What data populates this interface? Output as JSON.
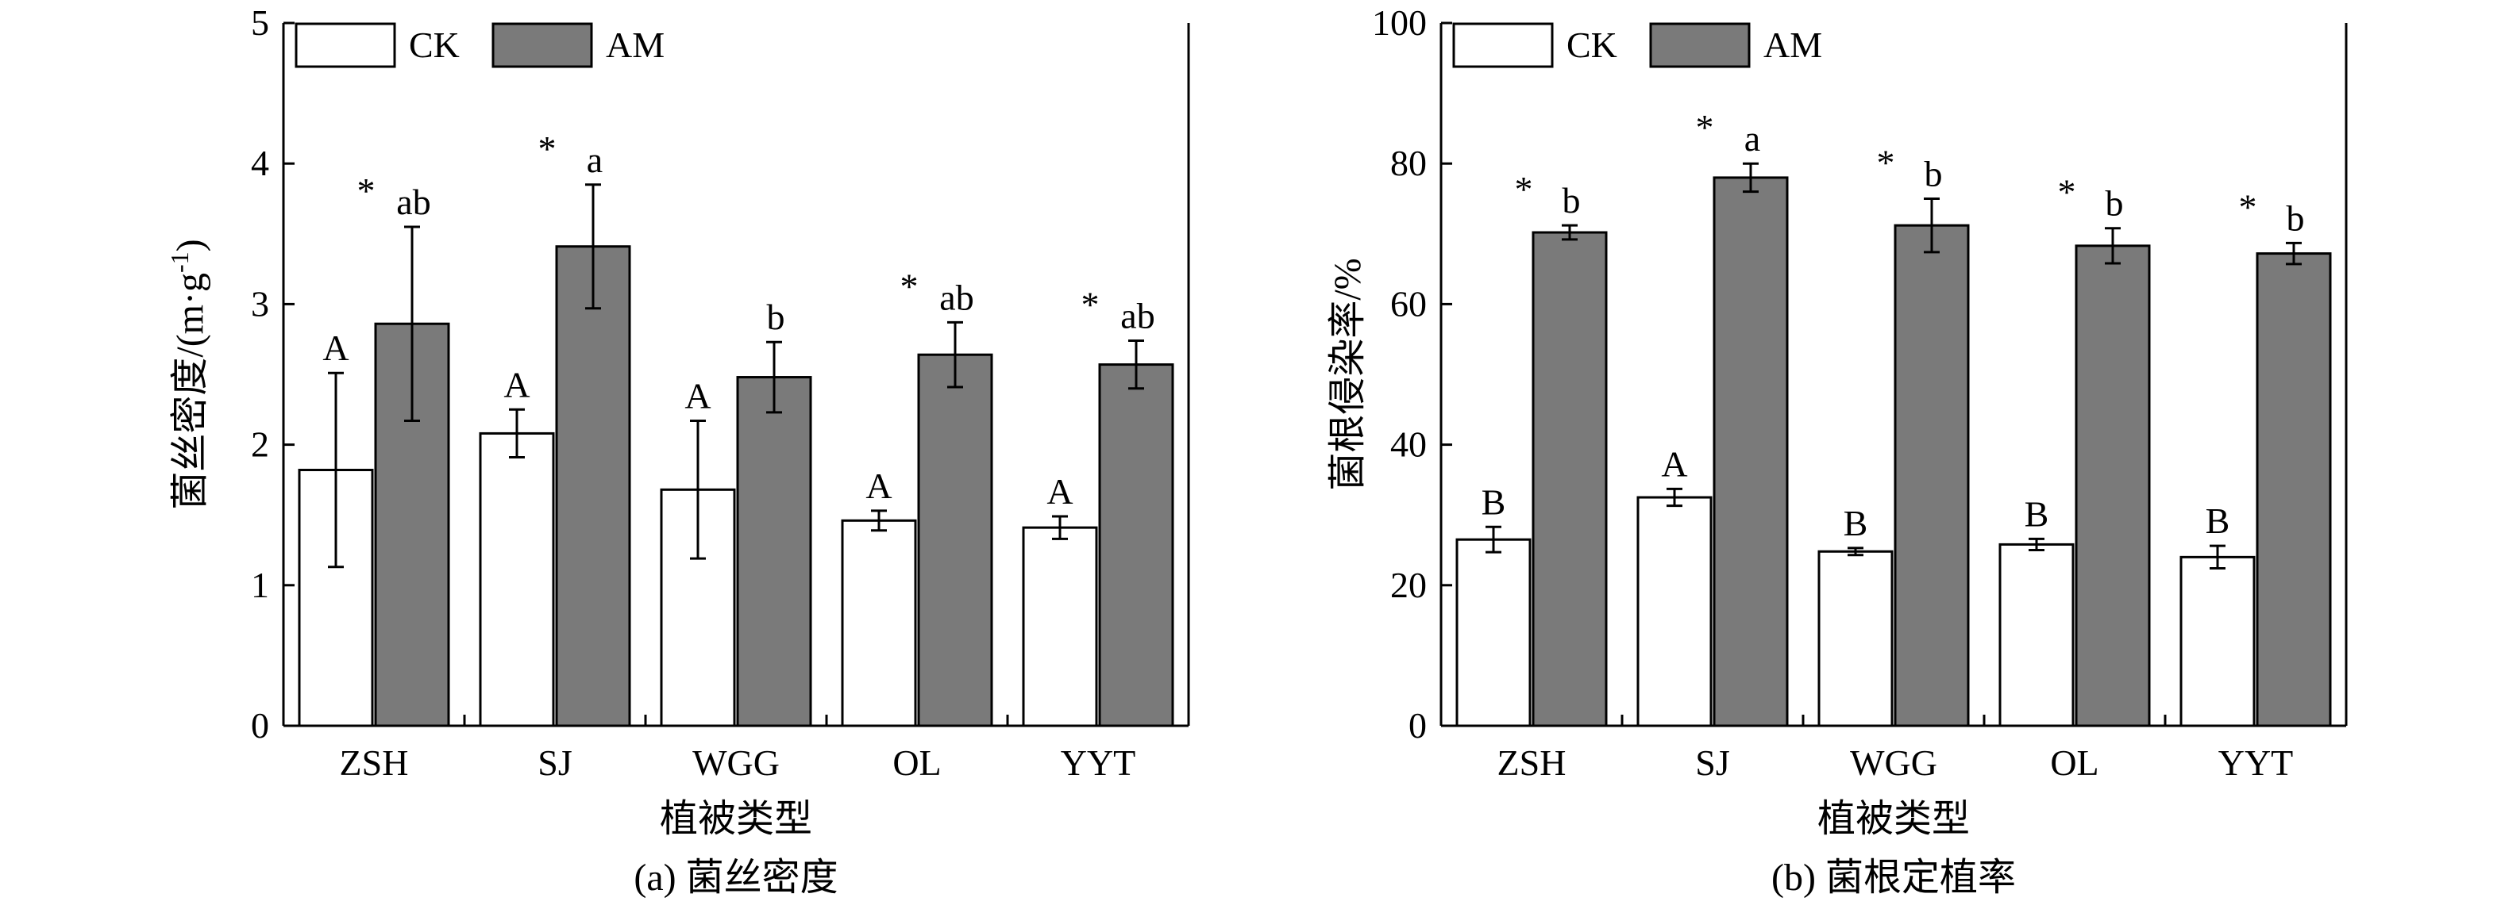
{
  "colors": {
    "CK": "#ffffff",
    "AM": "#7a7a7a",
    "stroke": "#000000"
  },
  "chart_data": [
    {
      "type": "bar",
      "caption": "(a) 菌丝密度",
      "xlabel": "植被类型",
      "ylabel": "菌丝密度/(m·g",
      "ylabel_sup": "-1",
      "ylabel_end": ")",
      "ylim": [
        0,
        5
      ],
      "yticks": [
        "0",
        "1",
        "2",
        "3",
        "4",
        "5"
      ],
      "legend_position": "top-left",
      "categories": [
        "ZSH",
        "SJ",
        "WGG",
        "OL",
        "YYT"
      ],
      "series": [
        {
          "name": "CK",
          "values": [
            1.82,
            2.08,
            1.68,
            1.46,
            1.41
          ],
          "errors": [
            0.69,
            0.17,
            0.49,
            0.07,
            0.08
          ],
          "labels": [
            "A",
            "A",
            "A",
            "A",
            "A"
          ],
          "stars": [
            "",
            "",
            "",
            "",
            ""
          ]
        },
        {
          "name": "AM",
          "values": [
            2.86,
            3.41,
            2.48,
            2.64,
            2.57
          ],
          "errors": [
            0.69,
            0.44,
            0.25,
            0.23,
            0.17
          ],
          "labels": [
            "ab",
            "a",
            "b",
            "ab",
            "ab"
          ],
          "stars": [
            "*",
            "*",
            "",
            "*",
            "*"
          ]
        }
      ]
    },
    {
      "type": "bar",
      "caption": "(b) 菌根定植率",
      "xlabel": "植被类型",
      "ylabel": "菌根侵染率/%",
      "ylim": [
        0,
        100
      ],
      "yticks": [
        "0",
        "20",
        "40",
        "60",
        "80",
        "100"
      ],
      "legend_position": "top-left",
      "categories": [
        "ZSH",
        "SJ",
        "WGG",
        "OL",
        "YYT"
      ],
      "series": [
        {
          "name": "CK",
          "values": [
            26.5,
            32.5,
            24.8,
            25.8,
            24.0
          ],
          "errors": [
            1.8,
            1.2,
            0.5,
            0.8,
            1.6
          ],
          "labels": [
            "B",
            "A",
            "B",
            "B",
            "B"
          ],
          "stars": [
            "",
            "",
            "",
            "",
            ""
          ]
        },
        {
          "name": "AM",
          "values": [
            70.2,
            78.0,
            71.2,
            68.3,
            67.2
          ],
          "errors": [
            1.0,
            2.0,
            3.8,
            2.5,
            1.5
          ],
          "labels": [
            "b",
            "a",
            "b",
            "b",
            "b"
          ],
          "stars": [
            "*",
            "*",
            "*",
            "*",
            "*"
          ]
        }
      ]
    }
  ]
}
